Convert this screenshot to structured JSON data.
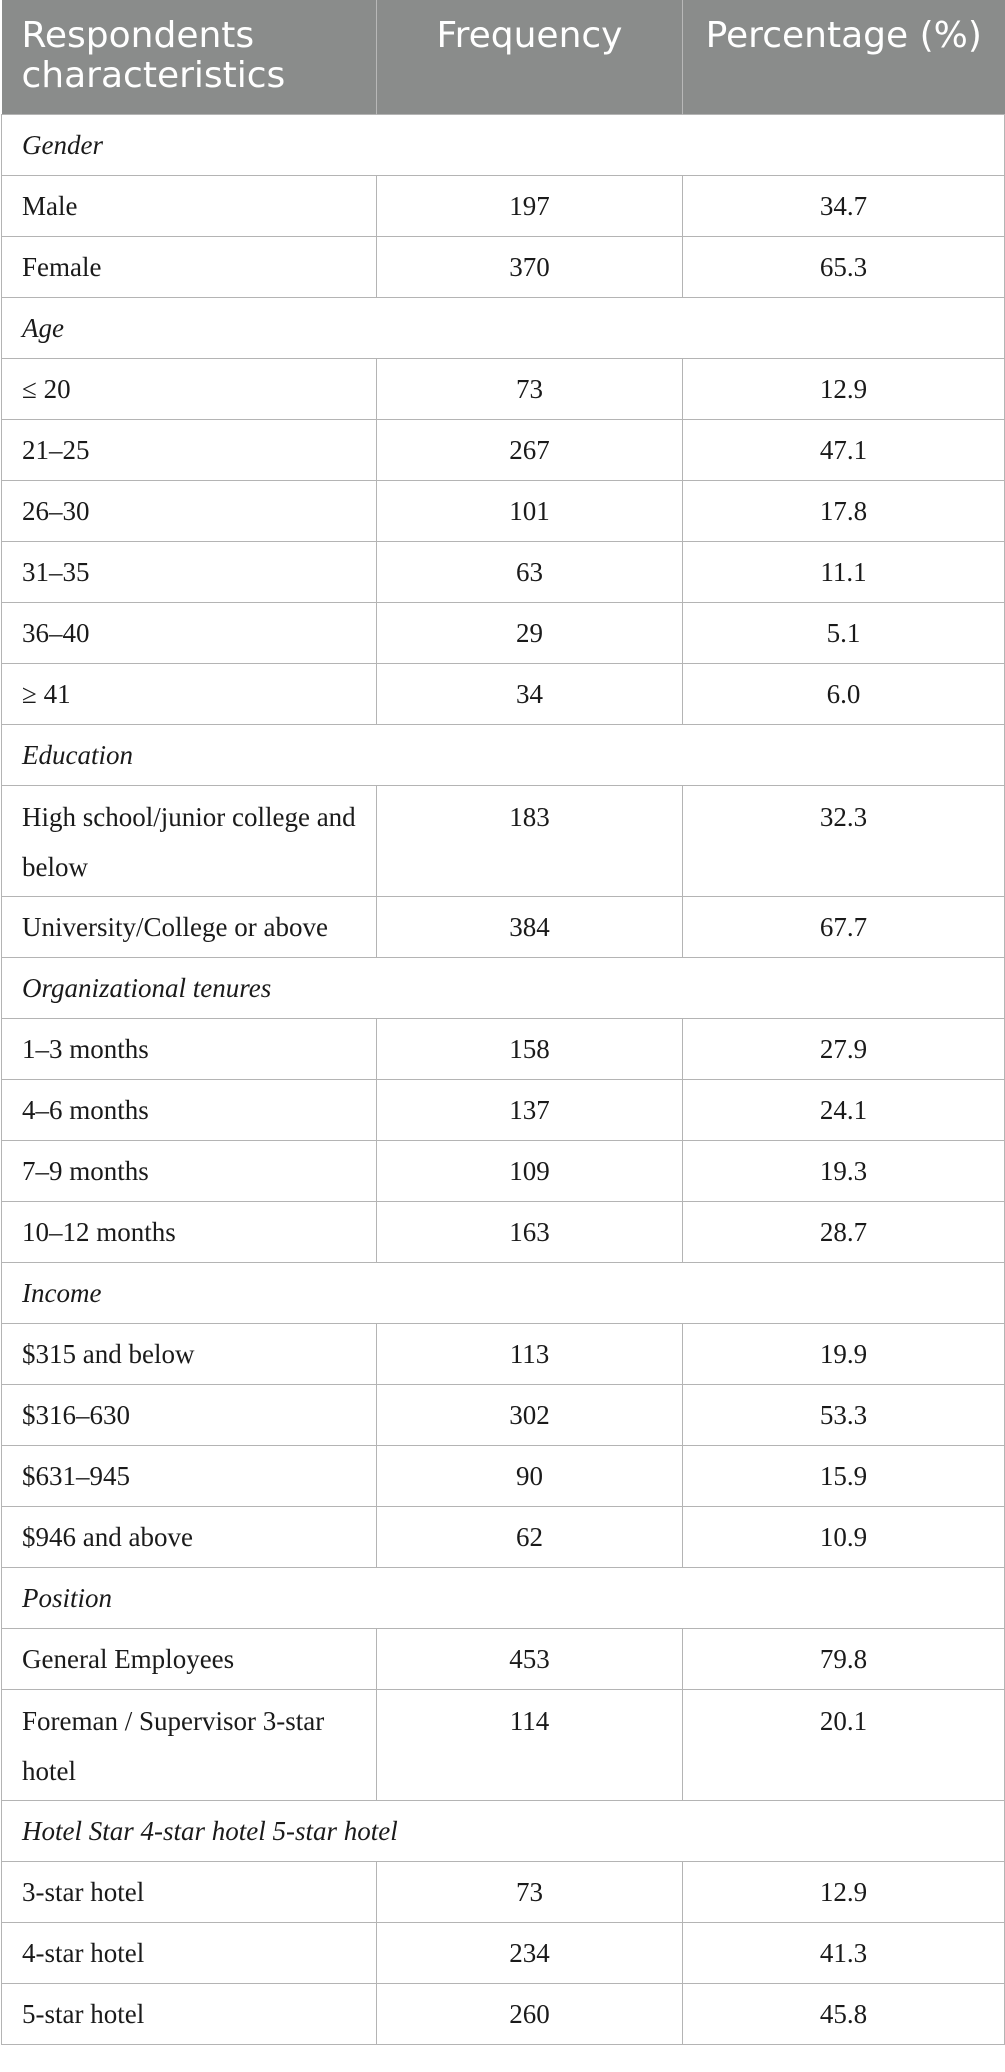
{
  "headers": [
    "Respondents characteristics",
    "Frequency",
    "Percentage (%)"
  ],
  "rows": [
    {
      "type": "section",
      "label": "Gender"
    },
    {
      "type": "data",
      "label": "Male",
      "frequency": "197",
      "percentage": "34.7"
    },
    {
      "type": "data",
      "label": "Female",
      "frequency": "370",
      "percentage": "65.3"
    },
    {
      "type": "section",
      "label": "Age"
    },
    {
      "type": "data",
      "label": "≤ 20",
      "frequency": "73",
      "percentage": "12.9"
    },
    {
      "type": "data",
      "label": "21–25",
      "frequency": "267",
      "percentage": "47.1"
    },
    {
      "type": "data",
      "label": "26–30",
      "frequency": "101",
      "percentage": "17.8"
    },
    {
      "type": "data",
      "label": "31–35",
      "frequency": "63",
      "percentage": "11.1"
    },
    {
      "type": "data",
      "label": "36–40",
      "frequency": "29",
      "percentage": "5.1"
    },
    {
      "type": "data",
      "label": "≥ 41",
      "frequency": "34",
      "percentage": "6.0"
    },
    {
      "type": "section",
      "label": "Education"
    },
    {
      "type": "data",
      "tall": true,
      "label": "High school/junior college and below",
      "frequency": "183",
      "percentage": "32.3"
    },
    {
      "type": "data",
      "label": "University/College or above",
      "frequency": "384",
      "percentage": "67.7"
    },
    {
      "type": "section",
      "label": "Organizational tenures"
    },
    {
      "type": "data",
      "label": "1–3 months",
      "frequency": "158",
      "percentage": "27.9"
    },
    {
      "type": "data",
      "label": "4–6 months",
      "frequency": "137",
      "percentage": "24.1"
    },
    {
      "type": "data",
      "label": "7–9 months",
      "frequency": "109",
      "percentage": "19.3"
    },
    {
      "type": "data",
      "label": "10–12 months",
      "frequency": "163",
      "percentage": "28.7"
    },
    {
      "type": "section",
      "label": "Income"
    },
    {
      "type": "data",
      "label": "$315 and below",
      "frequency": "113",
      "percentage": "19.9"
    },
    {
      "type": "data",
      "label": "$316–630",
      "frequency": "302",
      "percentage": "53.3"
    },
    {
      "type": "data",
      "label": "$631–945",
      "frequency": "90",
      "percentage": "15.9"
    },
    {
      "type": "data",
      "label": "$946 and above",
      "frequency": "62",
      "percentage": "10.9"
    },
    {
      "type": "section",
      "label": "Position"
    },
    {
      "type": "data",
      "label": "General Employees",
      "frequency": "453",
      "percentage": "79.8"
    },
    {
      "type": "data",
      "tall": true,
      "label": "Foreman / Supervisor 3-star hotel",
      "frequency": "114",
      "percentage": "20.1"
    },
    {
      "type": "section",
      "label": "Hotel Star 4-star hotel 5-star hotel"
    },
    {
      "type": "data",
      "label": "3-star hotel",
      "frequency": "73",
      "percentage": "12.9"
    },
    {
      "type": "data",
      "label": "4-star hotel",
      "frequency": "234",
      "percentage": "41.3"
    },
    {
      "type": "data",
      "label": "5-star hotel",
      "frequency": "260",
      "percentage": "45.8"
    }
  ]
}
